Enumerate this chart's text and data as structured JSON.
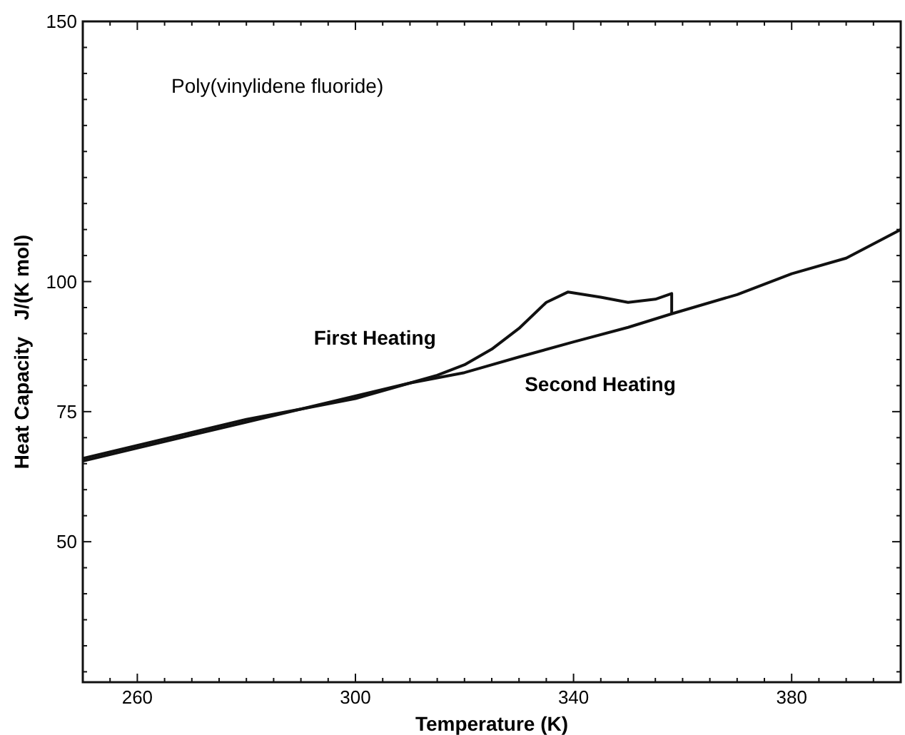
{
  "chart_data": {
    "type": "line",
    "title": "Poly(vinylidene fluoride)",
    "xlabel": "Temperature   (K)",
    "ylabel": "Heat Capacity   J/(K mol)",
    "xlim": [
      250,
      400
    ],
    "ylim": [
      23,
      150
    ],
    "xticks": [
      {
        "value": 255,
        "label": null
      },
      260,
      {
        "value": 265,
        "label": null
      },
      {
        "value": 270,
        "label": null
      },
      {
        "value": 275,
        "label": null
      },
      {
        "value": 280,
        "label": null
      },
      {
        "value": 285,
        "label": null
      },
      {
        "value": 290,
        "label": null
      },
      {
        "value": 295,
        "label": null
      },
      300,
      {
        "value": 305,
        "label": null
      },
      {
        "value": 310,
        "label": null
      },
      {
        "value": 315,
        "label": null
      },
      {
        "value": 320,
        "label": null
      },
      {
        "value": 325,
        "label": null
      },
      {
        "value": 330,
        "label": null
      },
      {
        "value": 335,
        "label": null
      },
      340,
      {
        "value": 345,
        "label": null
      },
      {
        "value": 350,
        "label": null
      },
      {
        "value": 355,
        "label": null
      },
      {
        "value": 360,
        "label": null
      },
      {
        "value": 365,
        "label": null
      },
      {
        "value": 370,
        "label": null
      },
      {
        "value": 375,
        "label": null
      },
      380,
      {
        "value": 385,
        "label": null
      },
      {
        "value": 390,
        "label": null
      },
      {
        "value": 395,
        "label": null
      }
    ],
    "yticks": [
      {
        "value": 25,
        "label": null
      },
      {
        "value": 30,
        "label": null
      },
      {
        "value": 35,
        "label": null
      },
      {
        "value": 40,
        "label": null
      },
      {
        "value": 45,
        "label": null
      },
      50,
      {
        "value": 55,
        "label": null
      },
      {
        "value": 60,
        "label": null
      },
      {
        "value": 65,
        "label": null
      },
      {
        "value": 70,
        "label": null
      },
      75,
      {
        "value": 80,
        "label": null
      },
      {
        "value": 85,
        "label": null
      },
      {
        "value": 90,
        "label": null
      },
      {
        "value": 95,
        "label": null
      },
      100,
      {
        "value": 105,
        "label": null
      },
      {
        "value": 110,
        "label": null
      },
      {
        "value": 115,
        "label": null
      },
      {
        "value": 120,
        "label": null
      },
      {
        "value": 125,
        "label": null
      },
      {
        "value": 130,
        "label": null
      },
      {
        "value": 135,
        "label": null
      },
      {
        "value": 140,
        "label": null
      },
      {
        "value": 145,
        "label": null
      },
      150
    ],
    "grid": false,
    "marker": "none",
    "line_style": "solid",
    "series": [
      {
        "name": "First Heating",
        "color": "#111111",
        "x": [
          250,
          260,
          270,
          280,
          290,
          300,
          310,
          315,
          320,
          325,
          330,
          335,
          339,
          345,
          350,
          355,
          358,
          358
        ],
        "values": [
          66,
          68.5,
          71,
          73.5,
          75.5,
          78,
          80.5,
          82,
          84,
          87,
          91,
          96,
          98,
          97,
          96,
          96.6,
          97.7,
          93.8
        ]
      },
      {
        "name": "Second Heating",
        "color": "#111111",
        "x": [
          250,
          260,
          270,
          280,
          290,
          300,
          310,
          320,
          330,
          340,
          350,
          358,
          370,
          380,
          390,
          400
        ],
        "values": [
          65.5,
          68,
          70.5,
          73,
          75.5,
          77.5,
          80.5,
          82.5,
          85.5,
          88.4,
          91.2,
          93.8,
          97.5,
          101.5,
          104.5,
          110
        ]
      }
    ]
  }
}
